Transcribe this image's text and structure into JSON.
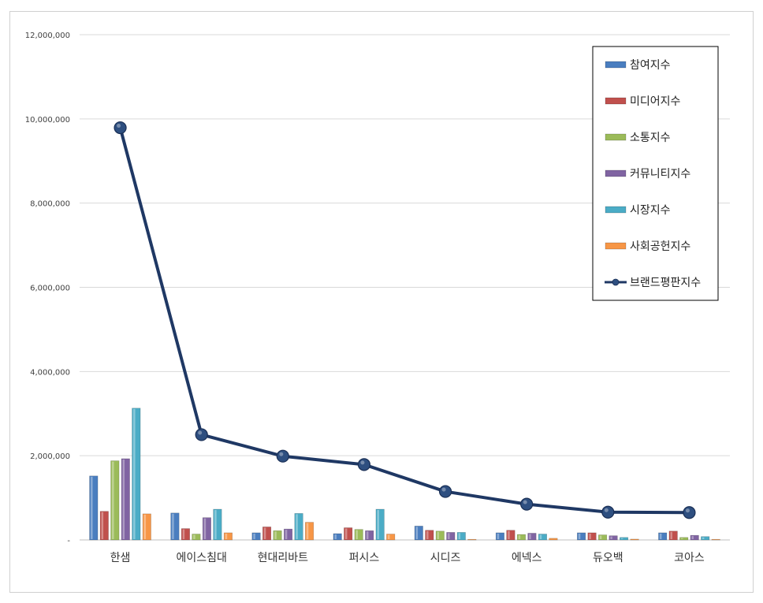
{
  "chart_data": {
    "type": "bar",
    "categories": [
      "한샘",
      "에이스침대",
      "현대리바트",
      "퍼시스",
      "시디즈",
      "에넥스",
      "듀오백",
      "코아스"
    ],
    "ylim": [
      0,
      12000000
    ],
    "yticks": [
      "-",
      "2,000,000",
      "4,000,000",
      "6,000,000",
      "8,000,000",
      "10,000,000",
      "12,000,000"
    ],
    "grid": true,
    "legend_position": "top-right",
    "series": [
      {
        "name": "참여지수",
        "color": "#4a7ebf",
        "values": [
          1520000,
          640000,
          170000,
          150000,
          330000,
          170000,
          170000,
          170000
        ]
      },
      {
        "name": "미디어지수",
        "color": "#c0504d",
        "values": [
          680000,
          270000,
          310000,
          290000,
          230000,
          230000,
          170000,
          210000
        ]
      },
      {
        "name": "소통지수",
        "color": "#9bbb59",
        "values": [
          1880000,
          140000,
          220000,
          250000,
          210000,
          130000,
          120000,
          60000
        ]
      },
      {
        "name": "커뮤니티지수",
        "color": "#8064a2",
        "values": [
          1930000,
          530000,
          260000,
          220000,
          180000,
          160000,
          100000,
          110000
        ]
      },
      {
        "name": "시장지수",
        "color": "#4bacc6",
        "values": [
          3130000,
          730000,
          630000,
          730000,
          180000,
          140000,
          60000,
          80000
        ]
      },
      {
        "name": "사회공헌지수",
        "color": "#f79646",
        "values": [
          620000,
          170000,
          420000,
          140000,
          10000,
          40000,
          20000,
          10000
        ]
      }
    ],
    "line_series": {
      "name": "브랜드평판지수",
      "color": "#1f3864",
      "values": [
        9790000,
        2500000,
        1990000,
        1790000,
        1150000,
        850000,
        660000,
        650000
      ]
    }
  }
}
